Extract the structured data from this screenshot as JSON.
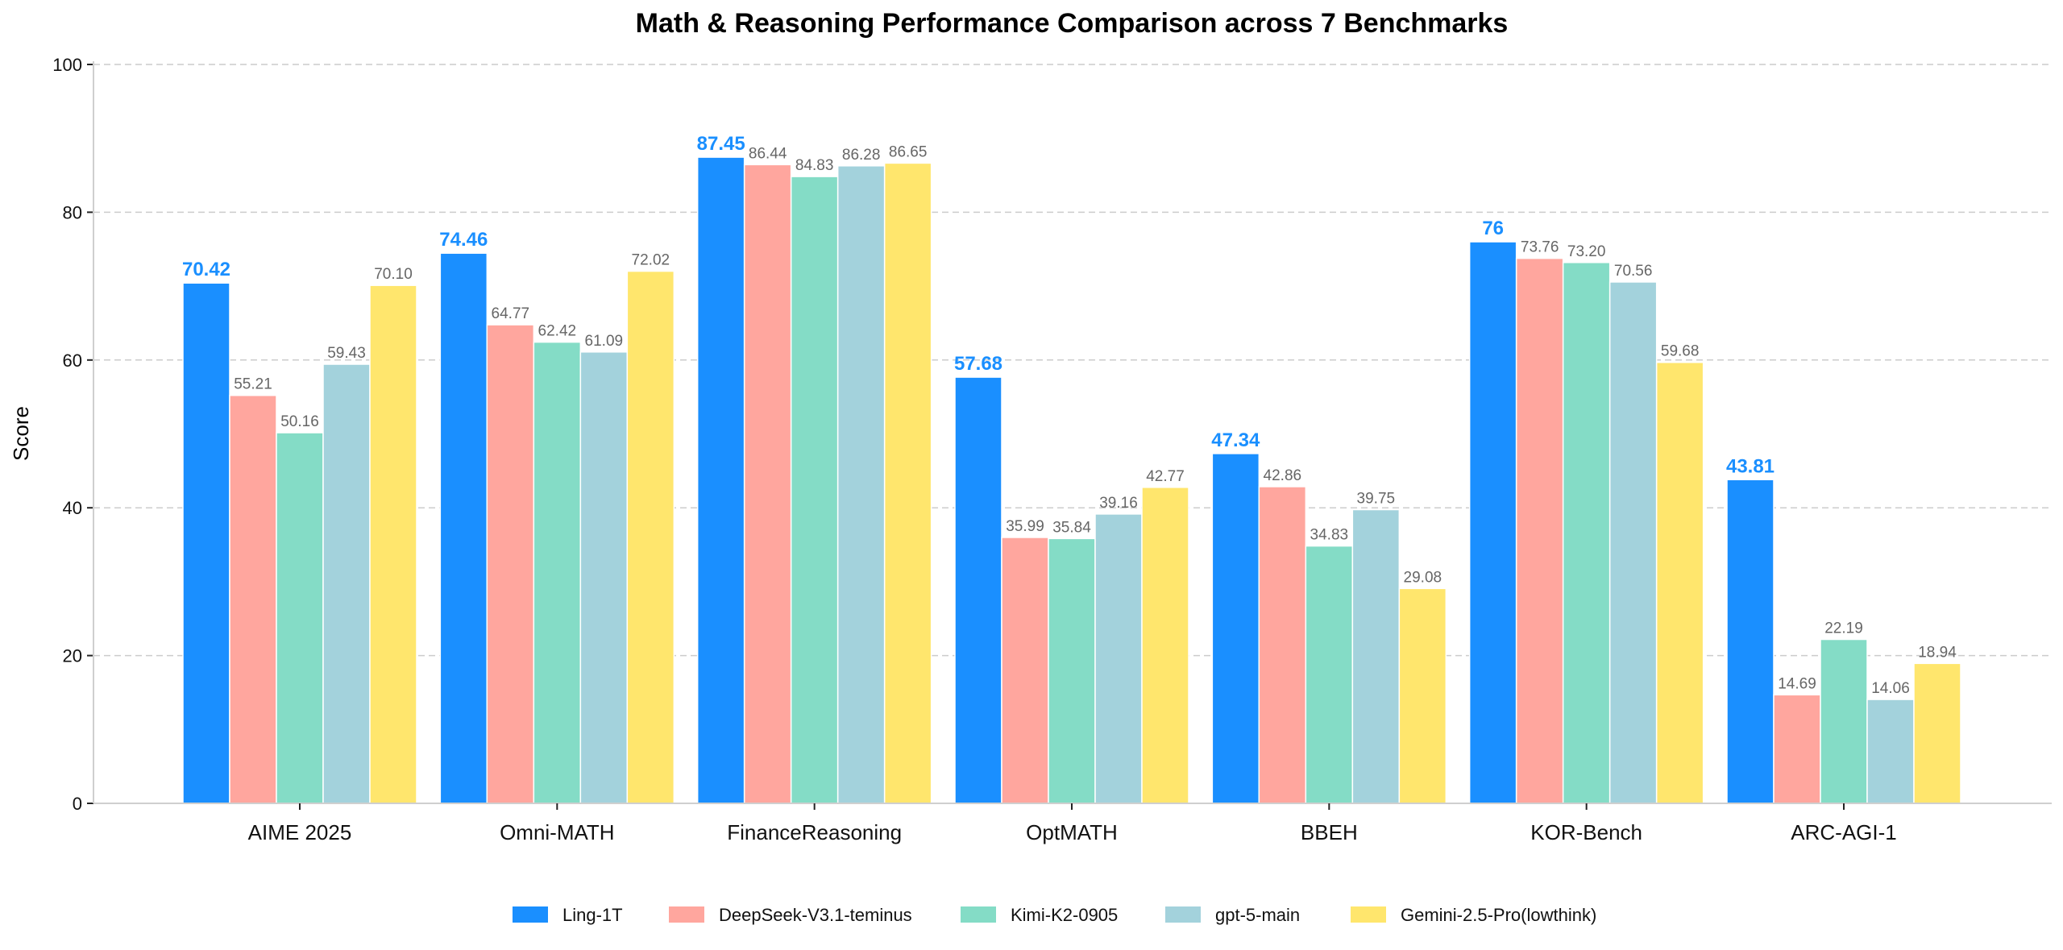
{
  "chart_data": {
    "type": "bar",
    "title": "Math & Reasoning Performance Comparison across 7 Benchmarks",
    "xlabel": "",
    "ylabel": "Score",
    "ylim": [
      0,
      100
    ],
    "yticks": [
      "0",
      "20",
      "40",
      "60",
      "80",
      "100"
    ],
    "grid": "horizontal dashed",
    "legend_position": "bottom-center",
    "categories": [
      "AIME 2025",
      "Omni-MATH",
      "FinanceReasoning",
      "OptMATH",
      "BBEH",
      "KOR-Bench",
      "ARC-AGI-1"
    ],
    "series": [
      {
        "name": "Ling-1T",
        "color": "#1a8fff",
        "values": [
          70.42,
          74.46,
          87.45,
          57.68,
          47.34,
          76,
          43.81
        ],
        "labels": [
          "70.42",
          "74.46",
          "87.45",
          "57.68",
          "47.34",
          "76",
          "43.81"
        ]
      },
      {
        "name": "DeepSeek-V3.1-teminus",
        "color": "#ffa69e",
        "values": [
          55.21,
          64.77,
          86.44,
          35.99,
          42.86,
          73.76,
          14.69
        ],
        "labels": [
          "55.21",
          "64.77",
          "86.44",
          "35.99",
          "42.86",
          "73.76",
          "14.69"
        ]
      },
      {
        "name": "Kimi-K2-0905",
        "color": "#84dcc6",
        "values": [
          50.16,
          62.42,
          84.83,
          35.84,
          34.83,
          73.2,
          22.19
        ],
        "labels": [
          "50.16",
          "62.42",
          "84.83",
          "35.84",
          "34.83",
          "73.20",
          "22.19"
        ]
      },
      {
        "name": "gpt-5-main",
        "color": "#a3d2dc",
        "values": [
          59.43,
          61.09,
          86.28,
          39.16,
          39.75,
          70.56,
          14.06
        ],
        "labels": [
          "59.43",
          "61.09",
          "86.28",
          "39.16",
          "39.75",
          "70.56",
          "14.06"
        ]
      },
      {
        "name": "Gemini-2.5-Pro(lowthink)",
        "color": "#ffe66d",
        "values": [
          70.1,
          72.02,
          86.65,
          42.77,
          29.08,
          59.68,
          18.94
        ],
        "labels": [
          "70.10",
          "72.02",
          "86.65",
          "42.77",
          "29.08",
          "59.68",
          "18.94"
        ]
      }
    ]
  }
}
